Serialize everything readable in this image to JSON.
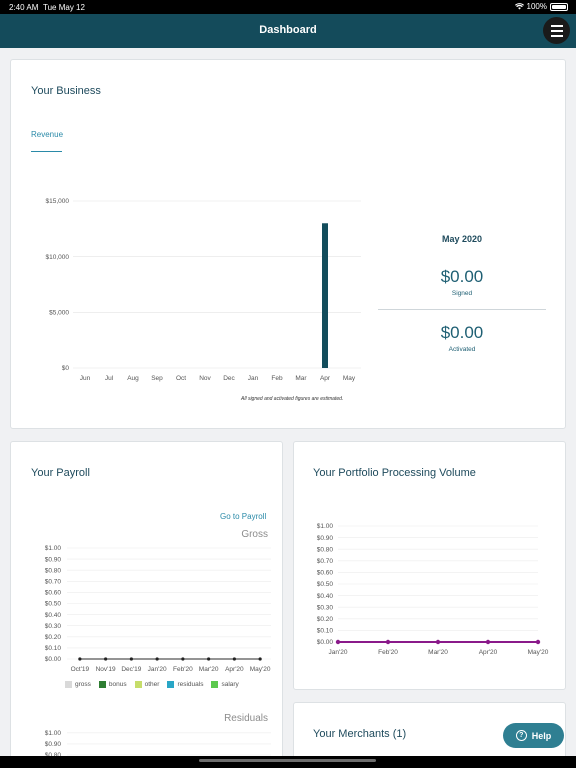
{
  "status_bar": {
    "time": "2:40 AM",
    "date": "Tue May 12",
    "battery": "100%"
  },
  "header": {
    "title": "Dashboard"
  },
  "business": {
    "title": "Your Business",
    "tab": "Revenue",
    "footnote": "All signed and activated figures are estimated.",
    "summary": {
      "month": "May 2020",
      "signed_value": "$0.00",
      "signed_label": "Signed",
      "activated_value": "$0.00",
      "activated_label": "Activated"
    }
  },
  "payroll": {
    "title": "Your Payroll",
    "link": "Go to Payroll",
    "gross_title": "Gross",
    "residuals_title": "Residuals"
  },
  "portfolio": {
    "title": "Your Portfolio Processing Volume"
  },
  "merchants": {
    "title": "Your Merchants (1)"
  },
  "help": {
    "label": "Help"
  },
  "colors": {
    "header": "#144b5b",
    "revenue_bar": "#134d5c",
    "portfolio_line": "#8a1a8a",
    "help_button": "#2f7f92"
  },
  "chart_data": [
    {
      "type": "bar",
      "title": "Revenue",
      "categories": [
        "Jun",
        "Jul",
        "Aug",
        "Sep",
        "Oct",
        "Nov",
        "Dec",
        "Jan",
        "Feb",
        "Mar",
        "Apr",
        "May"
      ],
      "values": [
        0,
        0,
        0,
        0,
        0,
        0,
        0,
        0,
        0,
        0,
        13000,
        0
      ],
      "yticks": [
        "$0",
        "$5,000",
        "$10,000",
        "$15,000"
      ],
      "ylim": [
        0,
        15000
      ],
      "grid": true
    },
    {
      "type": "line",
      "title": "Gross",
      "categories": [
        "Oct'19",
        "Nov'19",
        "Dec'19",
        "Jan'20",
        "Feb'20",
        "Mar'20",
        "Apr'20",
        "May'20"
      ],
      "series": [
        {
          "name": "gross",
          "color": "#d9d9d9",
          "values": [
            0,
            0,
            0,
            0,
            0,
            0,
            0,
            0
          ]
        },
        {
          "name": "bonus",
          "color": "#2e7d32",
          "values": [
            0,
            0,
            0,
            0,
            0,
            0,
            0,
            0
          ]
        },
        {
          "name": "other",
          "color": "#c6dd6a",
          "values": [
            0,
            0,
            0,
            0,
            0,
            0,
            0,
            0
          ]
        },
        {
          "name": "residuals",
          "color": "#29a6c6",
          "values": [
            0,
            0,
            0,
            0,
            0,
            0,
            0,
            0
          ]
        },
        {
          "name": "salary",
          "color": "#5cc94e",
          "values": [
            0,
            0,
            0,
            0,
            0,
            0,
            0,
            0
          ]
        }
      ],
      "yticks": [
        "$0.00",
        "$0.10",
        "$0.20",
        "$0.30",
        "$0.40",
        "$0.50",
        "$0.60",
        "$0.70",
        "$0.80",
        "$0.90",
        "$1.00"
      ],
      "ylim": [
        0,
        1
      ],
      "legend": "bottom"
    },
    {
      "type": "line",
      "title": "Residuals",
      "yticks": [
        "$0.80",
        "$0.90",
        "$1.00"
      ],
      "ylim": [
        0,
        1
      ]
    },
    {
      "type": "line",
      "categories": [
        "Jan'20",
        "Feb'20",
        "Mar'20",
        "Apr'20",
        "May'20"
      ],
      "series": [
        {
          "color": "#8a1a8a",
          "values": [
            0,
            0,
            0,
            0,
            0
          ]
        }
      ],
      "yticks": [
        "$0.00",
        "$0.10",
        "$0.20",
        "$0.30",
        "$0.40",
        "$0.50",
        "$0.60",
        "$0.70",
        "$0.80",
        "$0.90",
        "$1.00"
      ],
      "ylim": [
        0,
        1
      ]
    }
  ]
}
